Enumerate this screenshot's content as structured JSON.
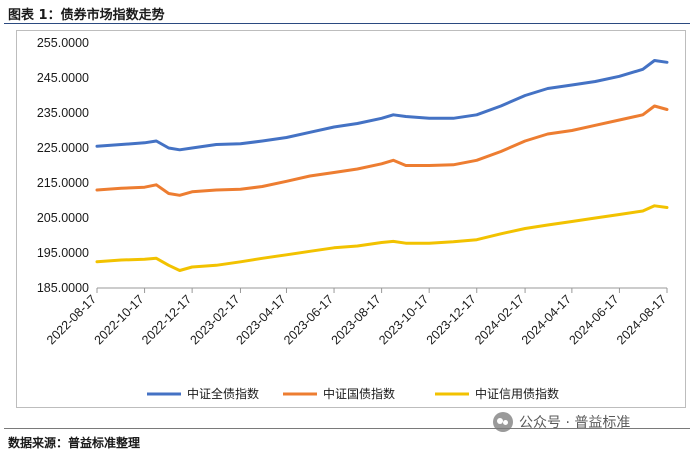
{
  "header": {
    "title": "图表 1：债券市场指数走势"
  },
  "footer": {
    "source": "数据来源：普益标准整理"
  },
  "watermark": {
    "text": "公众号 · 普益标准",
    "icon": "wechat-icon"
  },
  "chart_data": {
    "type": "line",
    "title": "",
    "xlabel": "",
    "ylabel": "",
    "ylim": [
      185,
      255
    ],
    "y_ticks": [
      "185.0000",
      "195.0000",
      "205.0000",
      "215.0000",
      "225.0000",
      "235.0000",
      "245.0000",
      "255.0000"
    ],
    "x_ticks": [
      "2022-08-17",
      "2022-10-17",
      "2022-12-17",
      "2023-02-17",
      "2023-04-17",
      "2023-06-17",
      "2023-08-17",
      "2023-10-17",
      "2023-12-17",
      "2024-02-17",
      "2024-04-17",
      "2024-06-17",
      "2024-08-17"
    ],
    "x": [
      "2022-08-17",
      "2022-09-17",
      "2022-10-17",
      "2022-11-01",
      "2022-11-17",
      "2022-12-01",
      "2022-12-17",
      "2023-01-17",
      "2023-02-17",
      "2023-03-17",
      "2023-04-17",
      "2023-05-17",
      "2023-06-17",
      "2023-07-17",
      "2023-08-17",
      "2023-09-01",
      "2023-09-17",
      "2023-10-17",
      "2023-11-17",
      "2023-12-17",
      "2024-01-17",
      "2024-02-17",
      "2024-03-17",
      "2024-04-17",
      "2024-05-17",
      "2024-06-17",
      "2024-07-17",
      "2024-08-01",
      "2024-08-17"
    ],
    "grid": false,
    "legend_position": "bottom",
    "series": [
      {
        "name": "中证全债指数",
        "color": "#4472C4",
        "values": [
          225.5,
          226.0,
          226.5,
          227.0,
          225.0,
          224.5,
          225.0,
          226.0,
          226.2,
          227.0,
          228.0,
          229.5,
          231.0,
          232.0,
          233.5,
          234.5,
          234.0,
          233.5,
          233.5,
          234.5,
          237.0,
          240.0,
          242.0,
          243.0,
          244.0,
          245.5,
          247.5,
          250.0,
          249.5
        ]
      },
      {
        "name": "中证国债指数",
        "color": "#ED7D31",
        "values": [
          213.0,
          213.5,
          213.8,
          214.5,
          212.0,
          211.5,
          212.5,
          213.0,
          213.2,
          214.0,
          215.5,
          217.0,
          218.0,
          219.0,
          220.5,
          221.5,
          220.0,
          220.0,
          220.2,
          221.5,
          224.0,
          227.0,
          229.0,
          230.0,
          231.5,
          233.0,
          234.5,
          237.0,
          236.0
        ]
      },
      {
        "name": "中证信用债指数",
        "color": "#F2C200",
        "values": [
          192.5,
          193.0,
          193.2,
          193.5,
          191.5,
          190.0,
          191.0,
          191.5,
          192.5,
          193.5,
          194.5,
          195.5,
          196.5,
          197.0,
          198.0,
          198.3,
          197.8,
          197.8,
          198.2,
          198.8,
          200.5,
          202.0,
          203.0,
          204.0,
          205.0,
          206.0,
          207.0,
          208.5,
          208.0
        ]
      }
    ]
  }
}
